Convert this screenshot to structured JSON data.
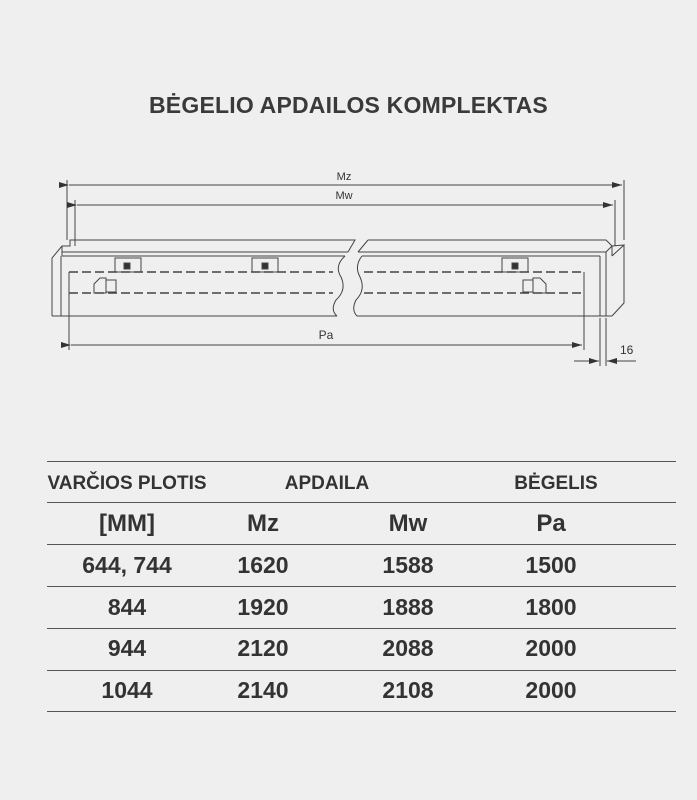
{
  "title": "BĖGELIO APDAILOS KOMPLEKTAS",
  "diagram": {
    "dim_mz": "Mz",
    "dim_mw": "Mw",
    "dim_pa": "Pa",
    "dim_16": "16"
  },
  "table": {
    "group_headers": [
      "VARČIOS PLOTIS",
      "APDAILA",
      "BĖGELIS"
    ],
    "columns": [
      "[MM]",
      "Mz",
      "Mw",
      "Pa"
    ],
    "rows": [
      [
        "644, 744",
        "1620",
        "1588",
        "1500"
      ],
      [
        "844",
        "1920",
        "1888",
        "1800"
      ],
      [
        "944",
        "2120",
        "2088",
        "2000"
      ],
      [
        "1044",
        "2140",
        "2108",
        "2000"
      ]
    ]
  }
}
